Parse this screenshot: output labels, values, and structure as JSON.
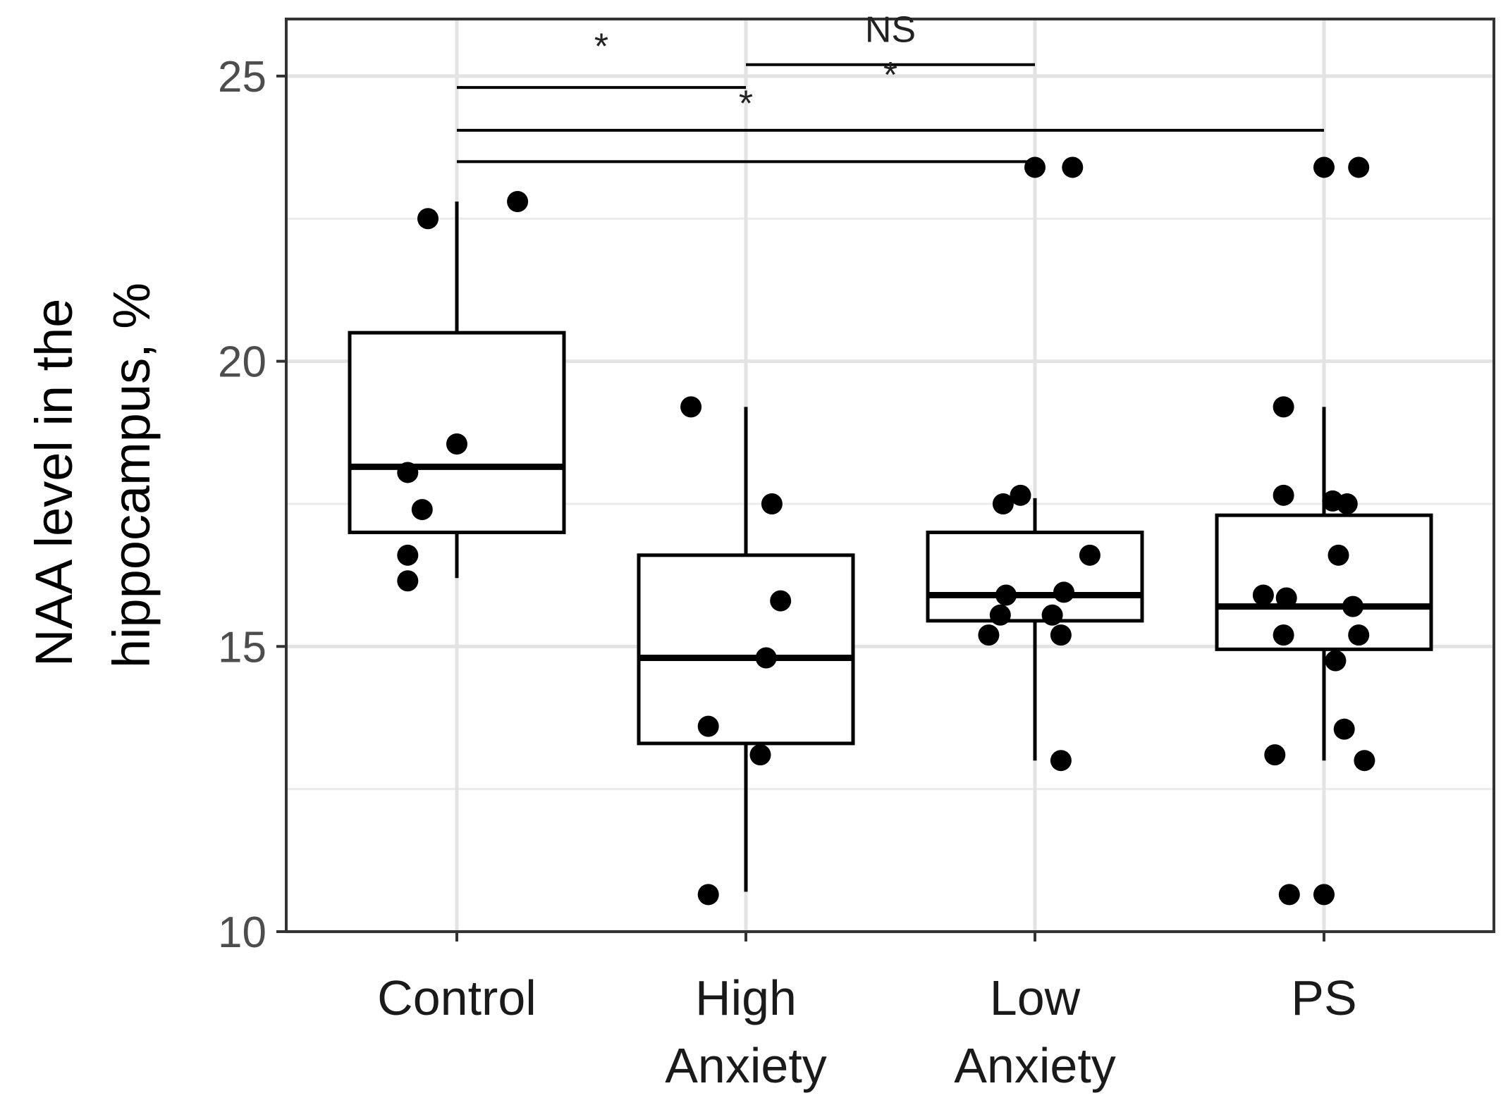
{
  "chart_data": {
    "type": "box",
    "title": "",
    "xlabel": "",
    "ylabel_lines": [
      "NAA level in the",
      "hippocampus, %"
    ],
    "ylim": [
      10,
      26
    ],
    "yticks": [
      10,
      15,
      20,
      25
    ],
    "grid": true,
    "categories": [
      {
        "key": "control",
        "lines": [
          "Control"
        ]
      },
      {
        "key": "high-anxiety",
        "lines": [
          "High",
          "Anxiety"
        ]
      },
      {
        "key": "low-anxiety",
        "lines": [
          "Low",
          "Anxiety"
        ]
      },
      {
        "key": "ps",
        "lines": [
          "PS"
        ]
      }
    ],
    "boxes": [
      {
        "category": "Control",
        "whisker_low": 16.2,
        "q1": 17.0,
        "median": 18.15,
        "q3": 20.5,
        "whisker_high": 22.8
      },
      {
        "category": "High Anxiety",
        "whisker_low": 10.7,
        "q1": 13.3,
        "median": 14.8,
        "q3": 16.6,
        "whisker_high": 19.2
      },
      {
        "category": "Low Anxiety",
        "whisker_low": 13.0,
        "q1": 15.45,
        "median": 15.9,
        "q3": 17.0,
        "whisker_high": 17.6
      },
      {
        "category": "PS",
        "whisker_low": 13.0,
        "q1": 14.95,
        "median": 15.7,
        "q3": 17.3,
        "whisker_high": 19.2
      }
    ],
    "points": [
      {
        "category": 0,
        "jitter": -0.1,
        "y": 22.5
      },
      {
        "category": 0,
        "jitter": 0.21,
        "y": 22.8
      },
      {
        "category": 0,
        "jitter": 0.0,
        "y": 18.55
      },
      {
        "category": 0,
        "jitter": -0.17,
        "y": 18.05
      },
      {
        "category": 0,
        "jitter": -0.12,
        "y": 17.4
      },
      {
        "category": 0,
        "jitter": -0.17,
        "y": 16.6
      },
      {
        "category": 0,
        "jitter": -0.17,
        "y": 16.15
      },
      {
        "category": 1,
        "jitter": -0.19,
        "y": 19.2
      },
      {
        "category": 1,
        "jitter": 0.09,
        "y": 17.5
      },
      {
        "category": 1,
        "jitter": 0.12,
        "y": 15.8
      },
      {
        "category": 1,
        "jitter": 0.07,
        "y": 14.8
      },
      {
        "category": 1,
        "jitter": -0.13,
        "y": 13.6
      },
      {
        "category": 1,
        "jitter": 0.05,
        "y": 13.1
      },
      {
        "category": 1,
        "jitter": -0.13,
        "y": 10.65
      },
      {
        "category": 2,
        "jitter": -0.11,
        "y": 17.5
      },
      {
        "category": 2,
        "jitter": -0.05,
        "y": 17.65
      },
      {
        "category": 2,
        "jitter": 0.19,
        "y": 16.6
      },
      {
        "category": 2,
        "jitter": -0.1,
        "y": 15.9
      },
      {
        "category": 2,
        "jitter": 0.1,
        "y": 15.95
      },
      {
        "category": 2,
        "jitter": -0.12,
        "y": 15.55
      },
      {
        "category": 2,
        "jitter": 0.06,
        "y": 15.55
      },
      {
        "category": 2,
        "jitter": -0.16,
        "y": 15.2
      },
      {
        "category": 2,
        "jitter": 0.09,
        "y": 15.2
      },
      {
        "category": 2,
        "jitter": 0.09,
        "y": 13.0
      },
      {
        "category": 2,
        "jitter": 0.0,
        "y": 23.4
      },
      {
        "category": 2,
        "jitter": 0.13,
        "y": 23.4
      },
      {
        "category": 3,
        "jitter": 0.0,
        "y": 23.4
      },
      {
        "category": 3,
        "jitter": 0.12,
        "y": 23.4
      },
      {
        "category": 3,
        "jitter": -0.14,
        "y": 19.2
      },
      {
        "category": 3,
        "jitter": -0.14,
        "y": 17.65
      },
      {
        "category": 3,
        "jitter": 0.03,
        "y": 17.55
      },
      {
        "category": 3,
        "jitter": 0.08,
        "y": 17.5
      },
      {
        "category": 3,
        "jitter": 0.05,
        "y": 16.6
      },
      {
        "category": 3,
        "jitter": -0.21,
        "y": 15.9
      },
      {
        "category": 3,
        "jitter": -0.13,
        "y": 15.85
      },
      {
        "category": 3,
        "jitter": 0.1,
        "y": 15.7
      },
      {
        "category": 3,
        "jitter": -0.14,
        "y": 15.2
      },
      {
        "category": 3,
        "jitter": 0.12,
        "y": 15.2
      },
      {
        "category": 3,
        "jitter": 0.04,
        "y": 14.75
      },
      {
        "category": 3,
        "jitter": 0.07,
        "y": 13.55
      },
      {
        "category": 3,
        "jitter": -0.17,
        "y": 13.1
      },
      {
        "category": 3,
        "jitter": 0.14,
        "y": 13.0
      },
      {
        "category": 3,
        "jitter": -0.12,
        "y": 10.65
      },
      {
        "category": 3,
        "jitter": 0.0,
        "y": 10.65
      }
    ],
    "comparisons": [
      {
        "from": 0,
        "to": 1,
        "y": 24.8,
        "label": "*",
        "label_y": 25.3
      },
      {
        "from": 1,
        "to": 2,
        "y": 25.2,
        "label": "NS",
        "label_y": 25.6
      },
      {
        "from": 0,
        "to": 3,
        "y": 24.05,
        "label": "*",
        "label_y": 24.3
      },
      {
        "from": 0,
        "to": 2,
        "y": 23.5,
        "label": "*",
        "label_y": 24.8
      }
    ]
  }
}
